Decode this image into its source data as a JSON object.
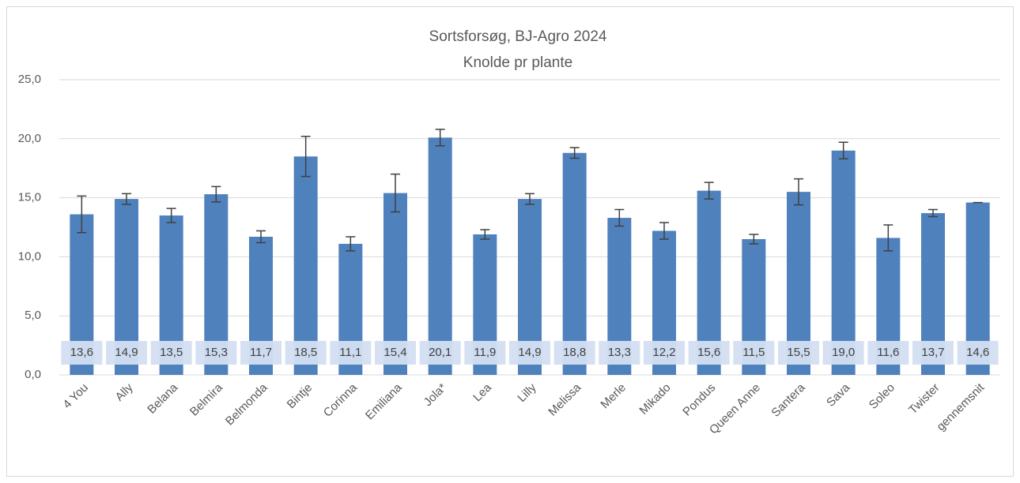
{
  "chart_data": {
    "type": "bar",
    "title": [
      "Sortsforsøg, BJ-Agro 2024",
      "Knolde pr plante"
    ],
    "categories": [
      "4 You",
      "Ally",
      "Belana",
      "Belmira",
      "Belmonda",
      "Bintje",
      "Corinna",
      "Emiliana",
      "Jola*",
      "Lea",
      "Lilly",
      "Melissa",
      "Merle",
      "Mikado",
      "Pondus",
      "Queen Anne",
      "Santera",
      "Sava",
      "Soleo",
      "Twister",
      "gennemsnit"
    ],
    "values": [
      13.6,
      14.9,
      13.5,
      15.3,
      11.7,
      18.5,
      11.1,
      15.4,
      20.1,
      11.9,
      14.9,
      18.8,
      13.3,
      12.2,
      15.6,
      11.5,
      15.5,
      19.0,
      11.6,
      13.7,
      14.6
    ],
    "value_labels": [
      "13,6",
      "14,9",
      "13,5",
      "15,3",
      "11,7",
      "18,5",
      "11,1",
      "15,4",
      "20,1",
      "11,9",
      "14,9",
      "18,8",
      "13,3",
      "12,2",
      "15,6",
      "11,5",
      "15,5",
      "19,0",
      "11,6",
      "13,7",
      "14,6"
    ],
    "errors": [
      1.55,
      0.45,
      0.6,
      0.65,
      0.5,
      1.7,
      0.6,
      1.6,
      0.7,
      0.4,
      0.45,
      0.45,
      0.7,
      0.7,
      0.7,
      0.4,
      1.1,
      0.7,
      1.1,
      0.3,
      0
    ],
    "color": "#4f81bd",
    "ylim": [
      0,
      25
    ],
    "yticks": [
      {
        "value": 0,
        "label": "0,0"
      },
      {
        "value": 5,
        "label": "5,0"
      },
      {
        "value": 10,
        "label": "10,0"
      },
      {
        "value": 15,
        "label": "15,0"
      },
      {
        "value": 20,
        "label": "20,0"
      },
      {
        "value": 25,
        "label": "25,0"
      }
    ],
    "grid": true
  }
}
